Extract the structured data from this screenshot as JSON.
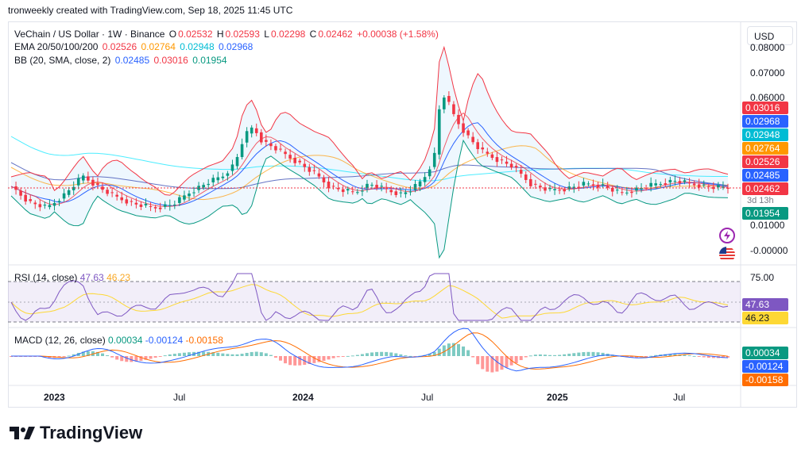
{
  "header": {
    "text": "tronweekly created with TradingView.com, Sep 18, 2025 11:45 UTC"
  },
  "legend": {
    "line1": {
      "symbol": "VeChain / US Dollar · 1W · Binance",
      "o_label": "O",
      "o": "0.02532",
      "h_label": "H",
      "h": "0.02593",
      "l_label": "L",
      "l": "0.02298",
      "c_label": "C",
      "c": "0.02462",
      "change": "+0.00038 (+1.58%)"
    },
    "line2": {
      "name": "EMA 20/50/100/200",
      "v20": "0.02526",
      "v50": "0.02764",
      "v100": "0.02948",
      "v200": "0.02968"
    },
    "line3": {
      "name": "BB (20, SMA, close, 2)",
      "basis": "0.02485",
      "upper": "0.03016",
      "lower": "0.01954"
    }
  },
  "currency_button": "USD",
  "price_axis": {
    "labels": [
      "0.08000",
      "0.07000",
      "0.06000",
      "0.01000",
      "-0.00000"
    ]
  },
  "price_tags": [
    {
      "value": "0.03016",
      "color": "#f23645"
    },
    {
      "value": "0.02968",
      "color": "#2962ff"
    },
    {
      "value": "0.02948",
      "color": "#00bcd4"
    },
    {
      "value": "0.02764",
      "color": "#ff9800"
    },
    {
      "value": "0.02526",
      "color": "#f23645"
    },
    {
      "value": "0.02485",
      "color": "#2962ff"
    },
    {
      "value": "0.02462",
      "color": "#f23645"
    },
    {
      "value": "0.01954",
      "color": "#089981"
    }
  ],
  "countdown": "3d 13h",
  "rsi": {
    "name": "RSI (14, close)",
    "value": "47.63",
    "ma": "46.23",
    "level_label": "75.00"
  },
  "macd": {
    "name": "MACD (12, 26, close)",
    "hist": "0.00034",
    "macd": "-0.00124",
    "signal": "-0.00158"
  },
  "time_axis": [
    {
      "label": "2023",
      "bold": true
    },
    {
      "label": "Jul",
      "bold": false
    },
    {
      "label": "2024",
      "bold": true
    },
    {
      "label": "Jul",
      "bold": false
    },
    {
      "label": "2025",
      "bold": true
    },
    {
      "label": "Jul",
      "bold": false
    }
  ],
  "brand": {
    "name": "TradingView"
  },
  "icons": [
    "lightning-icon",
    "us-flag-icon"
  ]
}
